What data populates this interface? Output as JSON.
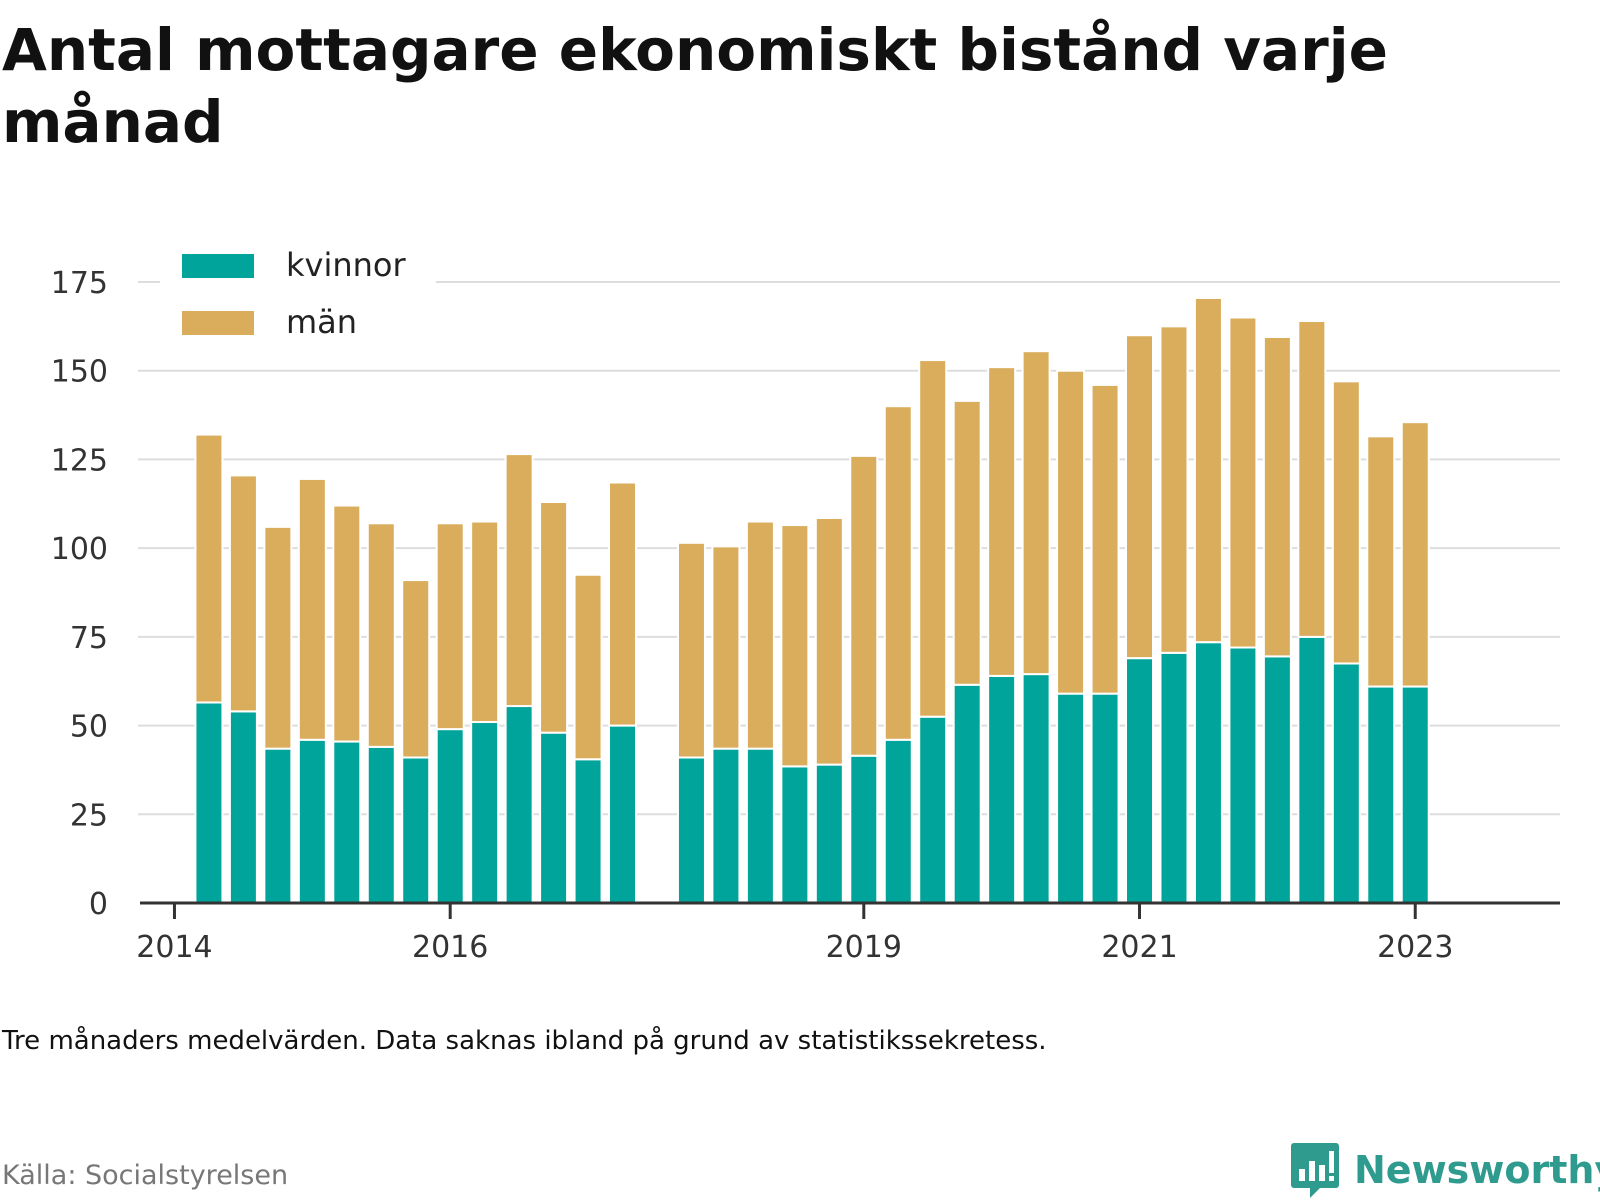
{
  "title": "Antal mottagare ekonomiskt bistånd varje månad",
  "note": "Tre månaders medelvärden. Data saknas ibland på grund av statistikssekretess.",
  "source": "Källa: Socialstyrelsen",
  "brand": {
    "name": "Newsworthy",
    "icon": "bar-chart-speech-bubble-icon",
    "color": "#2f9a8e"
  },
  "colors": {
    "kvinnor": "#00a49a",
    "man": "#d9ad5b",
    "grid": "#dddddd",
    "axis": "#333333"
  },
  "chart_data": {
    "type": "bar",
    "stacked": true,
    "legend_position": "top-left",
    "grid": true,
    "ylim": [
      0,
      175
    ],
    "y_ticks": [
      0,
      25,
      50,
      75,
      100,
      125,
      150,
      175
    ],
    "x_range": [
      2013.75,
      2024.05
    ],
    "x_ticks": [
      {
        "value": 2014,
        "label": "2014"
      },
      {
        "value": 2016,
        "label": "2016"
      },
      {
        "value": 2019,
        "label": "2019"
      },
      {
        "value": 2021,
        "label": "2021"
      },
      {
        "value": 2023,
        "label": "2023"
      }
    ],
    "x": [
      2014.25,
      2014.5,
      2014.75,
      2015.0,
      2015.25,
      2015.5,
      2015.75,
      2016.0,
      2016.25,
      2016.5,
      2016.75,
      2017.0,
      2017.25,
      2017.75,
      2018.0,
      2018.25,
      2018.5,
      2018.75,
      2019.0,
      2019.25,
      2019.5,
      2019.75,
      2020.0,
      2020.25,
      2020.5,
      2020.75,
      2021.0,
      2021.25,
      2021.5,
      2021.75,
      2022.0,
      2022.25,
      2022.5,
      2022.75,
      2023.0
    ],
    "series": [
      {
        "name": "kvinnor",
        "key": "kvinnor",
        "values": [
          56.5,
          54,
          43.5,
          46,
          45.5,
          44,
          41,
          49,
          51,
          55.5,
          48,
          40.5,
          50,
          41,
          43.5,
          43.5,
          38.5,
          39,
          41.5,
          46,
          52.5,
          61.5,
          64,
          64.5,
          59,
          59,
          69,
          70.5,
          73.5,
          72,
          69.5,
          75,
          67.5,
          61,
          61
        ]
      },
      {
        "name": "män",
        "key": "man",
        "values": [
          75.5,
          66.5,
          62.5,
          73.5,
          66.5,
          63,
          50,
          58,
          56.5,
          71,
          65,
          52,
          68.5,
          60.5,
          57,
          64,
          68,
          69.5,
          84.5,
          94,
          100.5,
          80,
          87,
          91,
          91,
          87,
          91,
          92,
          97,
          93,
          90,
          89,
          79.5,
          70.5,
          74.5
        ]
      }
    ]
  }
}
